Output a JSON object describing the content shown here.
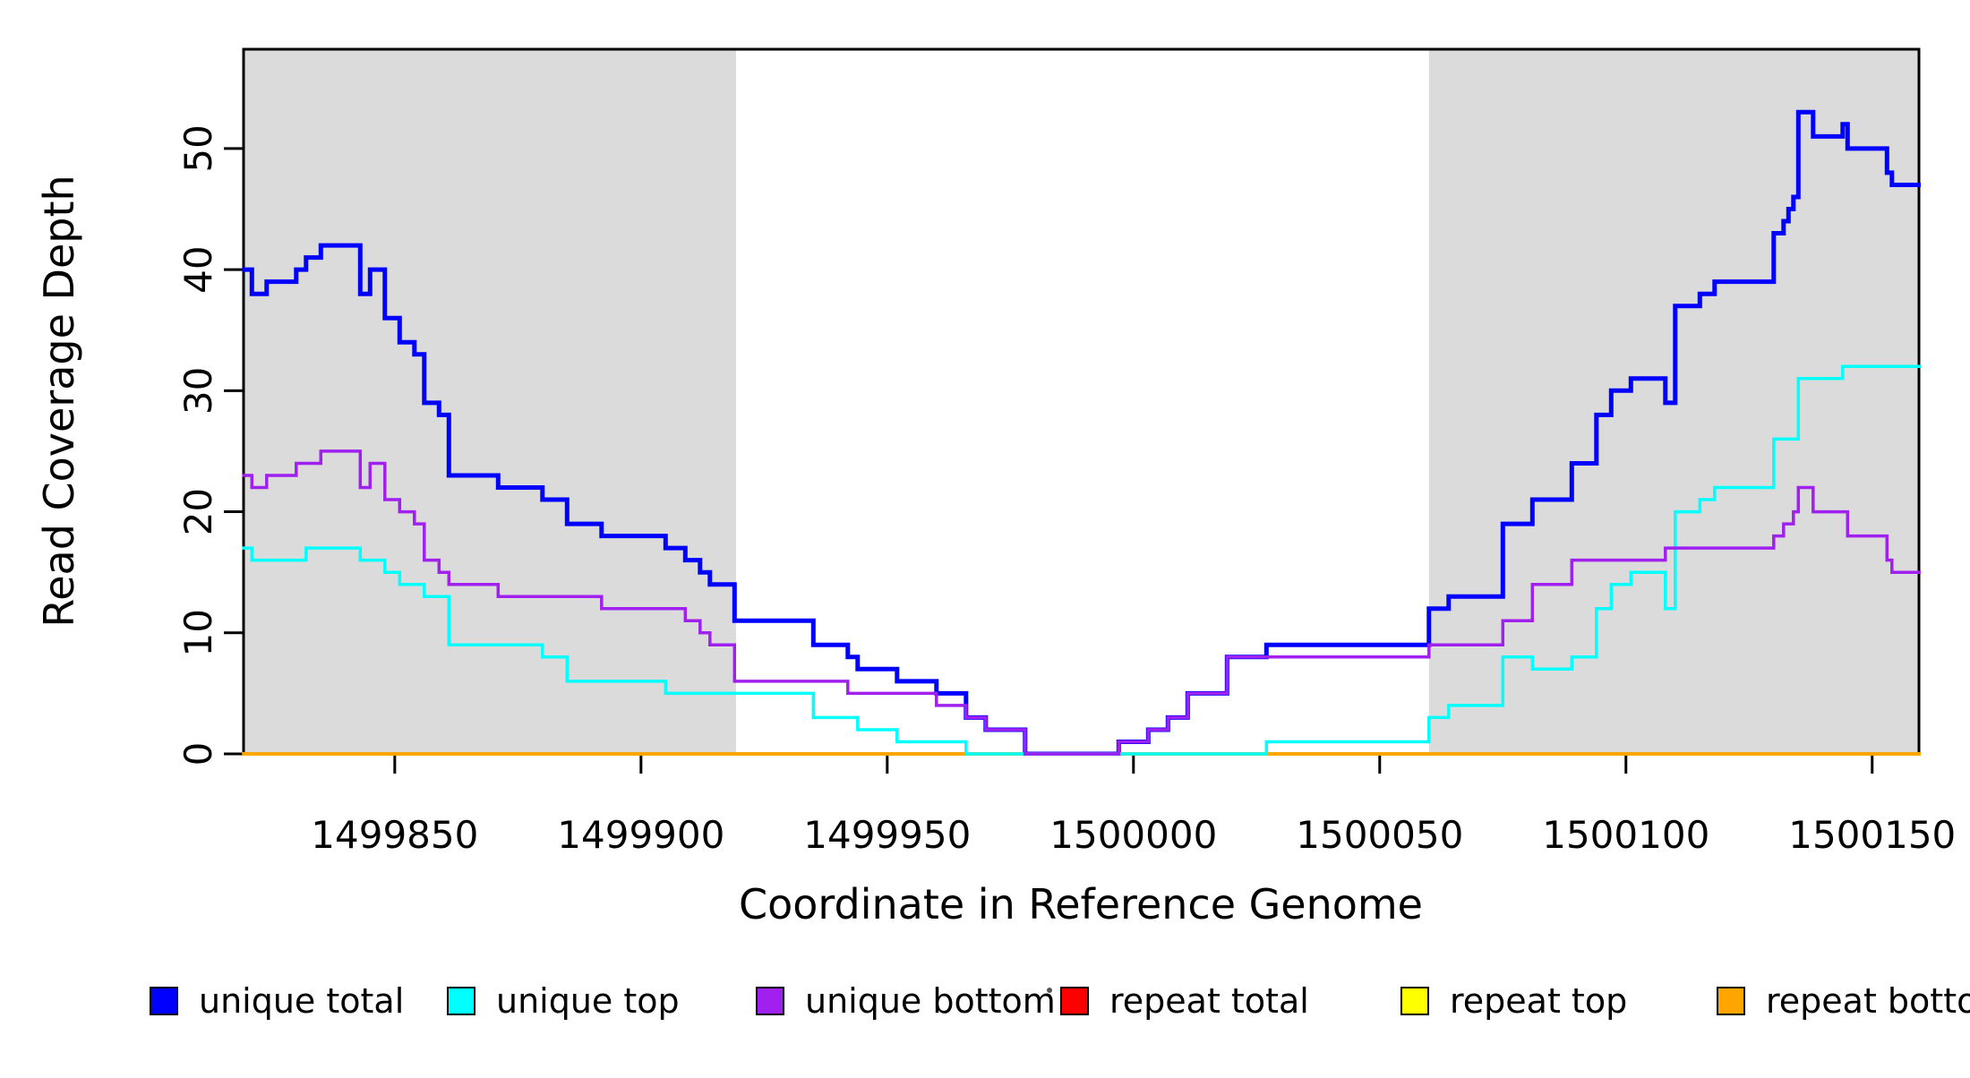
{
  "figure": {
    "background": "#ffffff",
    "plot_background": "#ffffff",
    "shaded_region_color": "#dbdbdb",
    "axis_color": "#000000"
  },
  "chart_data": {
    "type": "line",
    "subtype": "step-after-coverage-plot",
    "title": "",
    "xlabel": "Coordinate in Reference Genome",
    "ylabel": "Read Coverage Depth",
    "xlim": [
      1499819.3,
      1500159.5
    ],
    "ylim": [
      0,
      58.2
    ],
    "x_ticks": [
      1499850,
      1499900,
      1499950,
      1500000,
      1500050,
      1500100,
      1500150
    ],
    "y_ticks": [
      0,
      10,
      20,
      30,
      40,
      50
    ],
    "grid": false,
    "legend_position": "bottom",
    "shaded_regions": [
      {
        "from": 1499819.3,
        "to": 1499919.3
      },
      {
        "from": 1500060.0,
        "to": 1500159.5
      }
    ],
    "series": [
      {
        "name": "unique total",
        "color": "#0000FF",
        "line_width": 5,
        "points": [
          [
            1499819,
            40
          ],
          [
            1499821,
            38
          ],
          [
            1499824,
            39
          ],
          [
            1499830,
            40
          ],
          [
            1499832,
            41
          ],
          [
            1499835,
            42
          ],
          [
            1499843,
            38
          ],
          [
            1499845,
            40
          ],
          [
            1499848,
            36
          ],
          [
            1499851,
            34
          ],
          [
            1499854,
            33
          ],
          [
            1499856,
            29
          ],
          [
            1499859,
            28
          ],
          [
            1499861,
            23
          ],
          [
            1499871,
            22
          ],
          [
            1499880,
            21
          ],
          [
            1499885,
            19
          ],
          [
            1499892,
            18
          ],
          [
            1499905,
            17
          ],
          [
            1499909,
            16
          ],
          [
            1499912,
            15
          ],
          [
            1499914,
            14
          ],
          [
            1499919,
            11
          ],
          [
            1499935,
            9
          ],
          [
            1499942,
            8
          ],
          [
            1499944,
            7
          ],
          [
            1499952,
            6
          ],
          [
            1499960,
            5
          ],
          [
            1499966,
            3
          ],
          [
            1499970,
            2
          ],
          [
            1499978,
            0
          ],
          [
            1499997,
            1
          ],
          [
            1500003,
            2
          ],
          [
            1500007,
            3
          ],
          [
            1500011,
            5
          ],
          [
            1500019,
            8
          ],
          [
            1500027,
            9
          ],
          [
            1500060,
            12
          ],
          [
            1500064,
            13
          ],
          [
            1500075,
            19
          ],
          [
            1500081,
            21
          ],
          [
            1500089,
            24
          ],
          [
            1500094,
            28
          ],
          [
            1500097,
            30
          ],
          [
            1500101,
            31
          ],
          [
            1500108,
            29
          ],
          [
            1500110,
            37
          ],
          [
            1500115,
            38
          ],
          [
            1500118,
            39
          ],
          [
            1500130,
            43
          ],
          [
            1500132,
            44
          ],
          [
            1500133,
            45
          ],
          [
            1500134,
            46
          ],
          [
            1500135,
            53
          ],
          [
            1500138,
            51
          ],
          [
            1500144,
            52
          ],
          [
            1500145,
            50
          ],
          [
            1500153,
            48
          ],
          [
            1500154,
            47
          ],
          [
            1500160,
            47
          ]
        ]
      },
      {
        "name": "unique top",
        "color": "#00FFFF",
        "line_width": 3.5,
        "points": [
          [
            1499819,
            17
          ],
          [
            1499821,
            16
          ],
          [
            1499832,
            17
          ],
          [
            1499843,
            16
          ],
          [
            1499848,
            15
          ],
          [
            1499851,
            14
          ],
          [
            1499856,
            13
          ],
          [
            1499861,
            9
          ],
          [
            1499880,
            8
          ],
          [
            1499885,
            6
          ],
          [
            1499905,
            5
          ],
          [
            1499935,
            3
          ],
          [
            1499944,
            2
          ],
          [
            1499952,
            1
          ],
          [
            1499966,
            0
          ],
          [
            1500027,
            1
          ],
          [
            1500060,
            3
          ],
          [
            1500064,
            4
          ],
          [
            1500075,
            8
          ],
          [
            1500081,
            7
          ],
          [
            1500089,
            8
          ],
          [
            1500094,
            12
          ],
          [
            1500097,
            14
          ],
          [
            1500101,
            15
          ],
          [
            1500108,
            12
          ],
          [
            1500110,
            20
          ],
          [
            1500115,
            21
          ],
          [
            1500118,
            22
          ],
          [
            1500130,
            26
          ],
          [
            1500135,
            31
          ],
          [
            1500144,
            32
          ],
          [
            1500160,
            32
          ]
        ]
      },
      {
        "name": "unique bottom",
        "color": "#A020F0",
        "line_width": 3.5,
        "points": [
          [
            1499819,
            23
          ],
          [
            1499821,
            22
          ],
          [
            1499824,
            23
          ],
          [
            1499830,
            24
          ],
          [
            1499835,
            25
          ],
          [
            1499843,
            22
          ],
          [
            1499845,
            24
          ],
          [
            1499848,
            21
          ],
          [
            1499851,
            20
          ],
          [
            1499854,
            19
          ],
          [
            1499856,
            16
          ],
          [
            1499859,
            15
          ],
          [
            1499861,
            14
          ],
          [
            1499871,
            13
          ],
          [
            1499892,
            12
          ],
          [
            1499909,
            11
          ],
          [
            1499912,
            10
          ],
          [
            1499914,
            9
          ],
          [
            1499919,
            6
          ],
          [
            1499942,
            5
          ],
          [
            1499960,
            4
          ],
          [
            1499966,
            3
          ],
          [
            1499970,
            2
          ],
          [
            1499978,
            0
          ],
          [
            1499997,
            1
          ],
          [
            1500003,
            2
          ],
          [
            1500007,
            3
          ],
          [
            1500011,
            5
          ],
          [
            1500019,
            8
          ],
          [
            1500060,
            9
          ],
          [
            1500075,
            11
          ],
          [
            1500081,
            14
          ],
          [
            1500089,
            16
          ],
          [
            1500108,
            17
          ],
          [
            1500130,
            18
          ],
          [
            1500132,
            19
          ],
          [
            1500134,
            20
          ],
          [
            1500135,
            22
          ],
          [
            1500138,
            20
          ],
          [
            1500145,
            18
          ],
          [
            1500153,
            16
          ],
          [
            1500154,
            15
          ],
          [
            1500160,
            15
          ]
        ]
      },
      {
        "name": "repeat total",
        "color": "#FF0000",
        "line_width": 3,
        "points": [
          [
            1499819,
            0
          ],
          [
            1500160,
            0
          ]
        ]
      },
      {
        "name": "repeat top",
        "color": "#FFFF00",
        "line_width": 3,
        "points": [
          [
            1499819,
            0
          ],
          [
            1500160,
            0
          ]
        ]
      },
      {
        "name": "repeat bottom",
        "color": "#FFA500",
        "line_width": 4,
        "points": [
          [
            1499819,
            0
          ],
          [
            1500160,
            0
          ]
        ]
      }
    ],
    "legend_items": [
      {
        "label": "unique total",
        "color": "#0000FF"
      },
      {
        "label": "unique top",
        "color": "#00FFFF"
      },
      {
        "label": "unique bottom",
        "color": "#A020F0"
      },
      {
        "label": "repeat total",
        "color": "#FF0000"
      },
      {
        "label": "repeat top",
        "color": "#FFFF00"
      },
      {
        "label": "repeat bottom",
        "color": "#FFA500"
      }
    ]
  }
}
